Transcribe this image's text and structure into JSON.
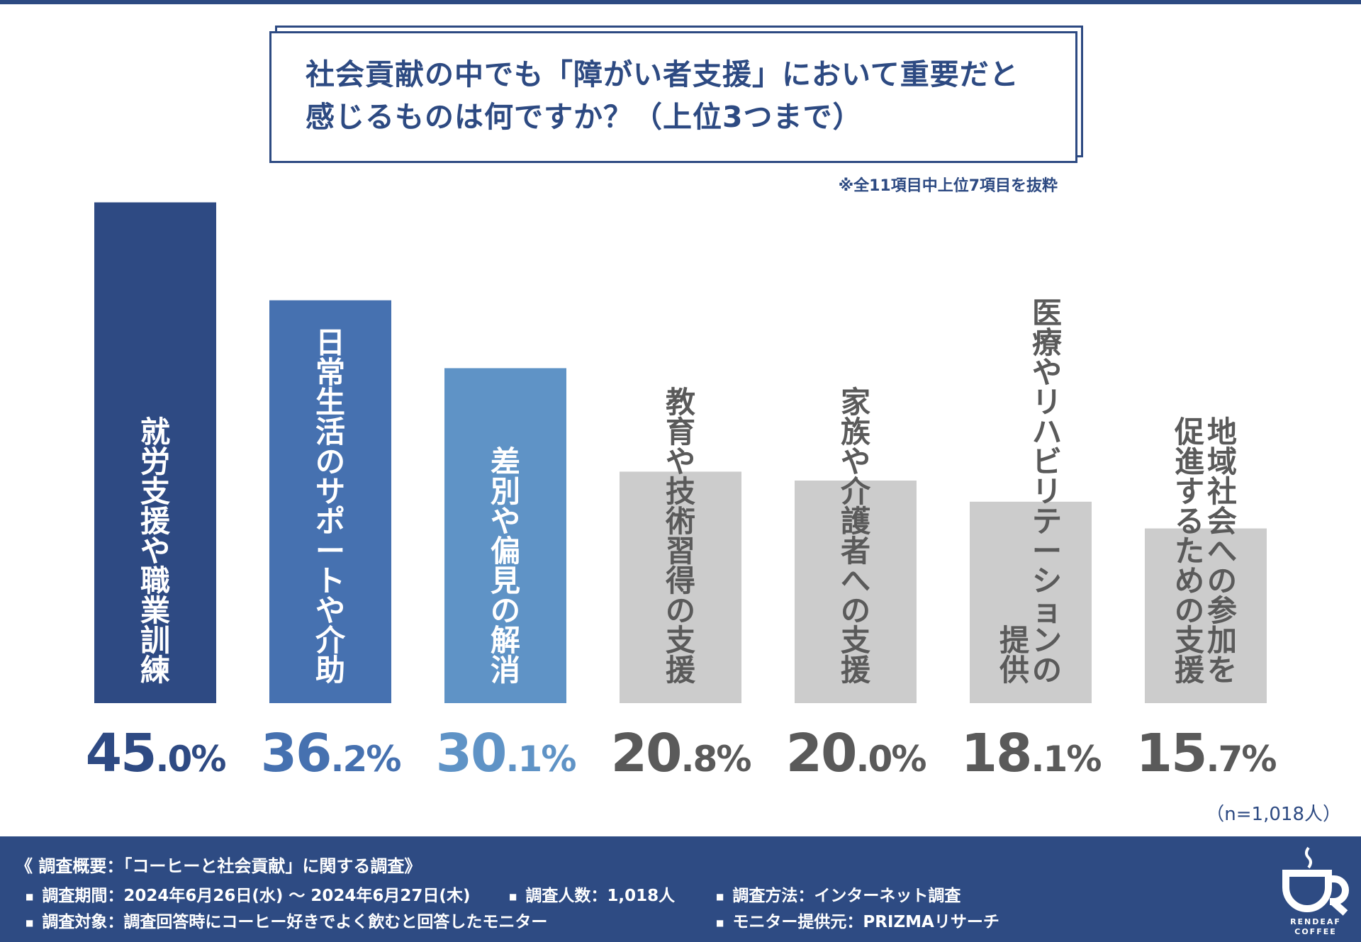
{
  "title": {
    "line1": "社会貢献の中でも「障がい者支援」において重要だと",
    "line2": "感じるものは何ですか？（上位3つまで）"
  },
  "note": "※全11項目中上位7項目を抜粋",
  "chart_data": {
    "type": "bar",
    "title": "社会貢献の中でも「障がい者支援」において重要だと感じるものは何ですか？（上位3つまで）",
    "ylim": [
      0,
      50
    ],
    "unit": "%",
    "categories": [
      "就労支援や職業訓練",
      "日常生活のサポートや介助",
      "差別や偏見の解消",
      "教育や技術習得の支援",
      "家族や介護者への支援",
      "医療やリハビリテーションの提供",
      "地域社会への参加を促進するための支援"
    ],
    "values": [
      45.0,
      36.2,
      30.1,
      20.8,
      20.0,
      18.1,
      15.7
    ],
    "value_labels": [
      "45.0%",
      "36.2%",
      "30.1%",
      "20.8%",
      "20.0%",
      "18.1%",
      "15.7%"
    ],
    "label_columns": [
      [
        "就労支援や職業訓練"
      ],
      [
        "日常生活のサポートや介助"
      ],
      [
        "差別や偏見の解消"
      ],
      [
        "教育や技術習得の支援"
      ],
      [
        "家族や介護者への支援"
      ],
      [
        "医療やリハビリテーションの",
        "提供"
      ],
      [
        "地域社会への参加を",
        "促進するための支援"
      ]
    ],
    "bar_colors": [
      "#2e4a83",
      "#4671b0",
      "#5f93c6",
      "#cccccc",
      "#cccccc",
      "#cccccc",
      "#cccccc"
    ],
    "label_colors": [
      "#ffffff",
      "#ffffff",
      "#ffffff",
      "#5a5a5a",
      "#5a5a5a",
      "#5a5a5a",
      "#5a5a5a"
    ],
    "value_colors": [
      "#2e4a83",
      "#4671b0",
      "#5f93c6",
      "#5a5a5a",
      "#5a5a5a",
      "#5a5a5a",
      "#5a5a5a"
    ]
  },
  "sample_note": "（n=1,018人）",
  "footer": {
    "heading": "《 調査概要：「コーヒーと社会貢献」に関する調査》",
    "period": "調査期間：2024年6月26日(水) ～ 2024年6月27日(木)",
    "count": "調査人数：1,018人",
    "method": "調査方法：インターネット調査",
    "target": "調査対象：調査回答時にコーヒー好きでよく飲むと回答したモニター",
    "provider": "モニター提供元：PRIZMAリサーチ"
  },
  "logo": {
    "line1": "RENDEAF",
    "line2": "COFFEE"
  }
}
